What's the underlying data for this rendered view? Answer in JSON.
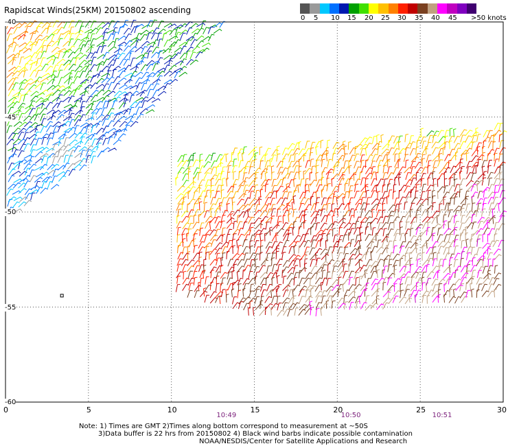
{
  "header": {
    "title": "Rapidscat Winds(25KM) 20150802 ascending"
  },
  "colorbar": {
    "colors": [
      "#555555",
      "#9a9a9a",
      "#00c8ff",
      "#0070ff",
      "#0018b0",
      "#00a000",
      "#40e000",
      "#ffff00",
      "#ffc000",
      "#ff8000",
      "#ff2000",
      "#c00000",
      "#7a4020",
      "#c0a080",
      "#ff00ff",
      "#c000c0",
      "#8000c0",
      "#400070"
    ],
    "labels": [
      "0",
      "5",
      "10",
      "15",
      "20",
      "25",
      "30",
      "35",
      "40",
      "45",
      ">50 knots"
    ]
  },
  "chart_data": {
    "type": "wind-barbs",
    "title": "Rapidscat Winds(25KM) 20150802 ascending",
    "xlim": [
      0,
      30
    ],
    "ylim": [
      -60,
      -40
    ],
    "x_ticks": [
      "0",
      "5",
      "10",
      "15",
      "20",
      "25",
      "30"
    ],
    "y_ticks": [
      "-40",
      "-45",
      "-50",
      "-55",
      "-60"
    ],
    "grid": true,
    "time_labels": [
      {
        "x": 13.3,
        "label": "10:49"
      },
      {
        "x": 20.8,
        "label": "10:50"
      },
      {
        "x": 26.3,
        "label": "10:51"
      }
    ],
    "swaths": [
      {
        "name": "upper-left swath",
        "corners": [
          [
            0,
            -40.2
          ],
          [
            13.3,
            -40.2
          ],
          [
            6.3,
            -46.9
          ],
          [
            0,
            -50.3
          ]
        ],
        "speed_knots": [
          [
            25,
            20,
            10,
            15,
            10
          ],
          [
            20,
            15,
            10,
            10,
            20
          ],
          [
            10,
            5,
            10,
            15,
            20
          ],
          [
            5,
            10,
            10,
            15,
            20
          ]
        ]
      },
      {
        "name": "main swath",
        "corners": [
          [
            10.2,
            -47.3
          ],
          [
            30,
            -45.6
          ],
          [
            29.6,
            -54.6
          ],
          [
            15.5,
            -55.8
          ],
          [
            10.2,
            -54.3
          ]
        ],
        "speed_knots": [
          [
            10,
            15,
            20,
            15,
            20
          ],
          [
            20,
            25,
            25,
            30,
            35
          ],
          [
            25,
            30,
            30,
            35,
            35
          ],
          [
            30,
            30,
            35,
            35,
            30
          ]
        ]
      }
    ],
    "isolated_marker": {
      "x": 3.4,
      "y": -54.4
    }
  },
  "notes": {
    "line1": "Note: 1) Times are GMT 2)Times along bottom correspond to measurement at ~50S",
    "line2": "3)Data buffer is 22 hrs from 20150802 4) Black wind barbs indicate possible contamination",
    "line3": "NOAA/NESDIS/Center for Satellite Applications and Research"
  }
}
